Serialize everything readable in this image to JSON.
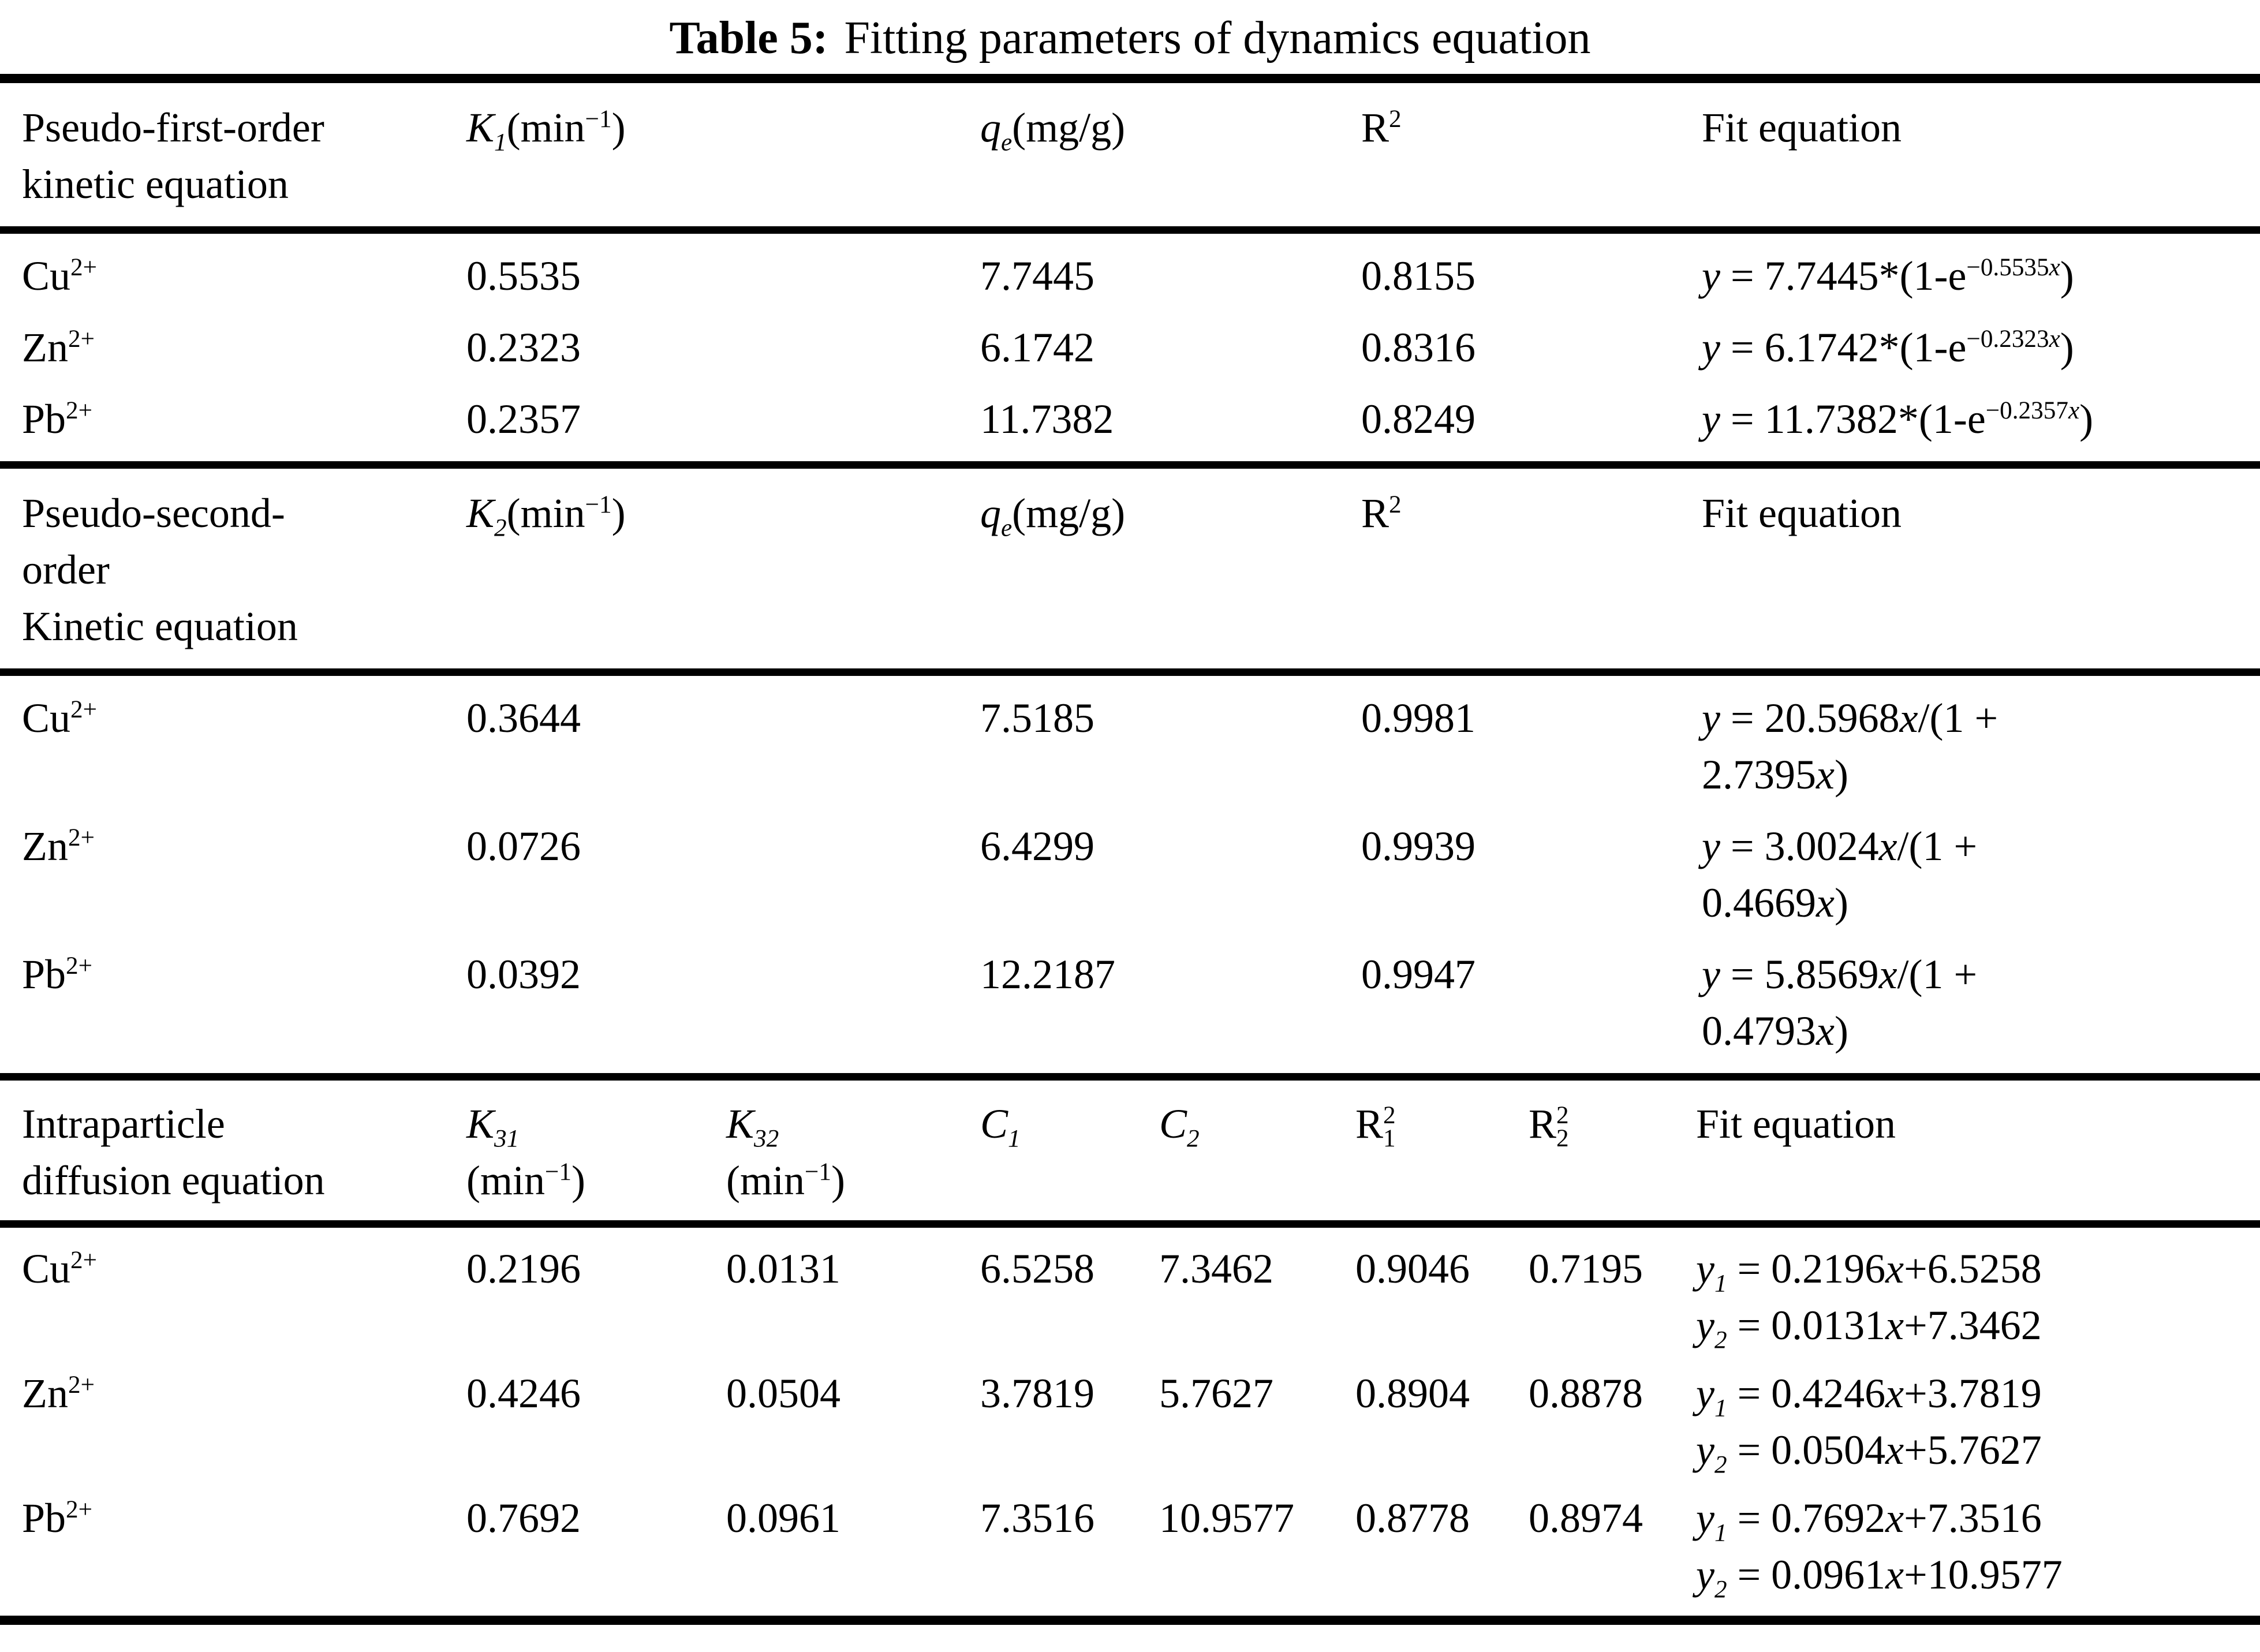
{
  "title": {
    "label": "Table 5:",
    "text": "Fitting parameters of dynamics equation"
  },
  "sections": [
    {
      "header": {
        "c0": "Pseudo-first-order<br>kinetic equation",
        "c1": "<i>K<sub>1</sub></i>(min<sup>−1</sup>)",
        "c2": "<i>q<sub>e</sub></i>(mg/g)",
        "c3": "R<sup>2</sup>",
        "c4": "Fit equation"
      },
      "rows": [
        {
          "ion": "Cu<sup>2+</sup>",
          "k": "0.5535",
          "qe": "7.7445",
          "r2": "0.8155",
          "fit1": "<i>y</i> = 7.7445*(1-e<sup>−0.5535<i>x</i></sup>)",
          "fit2": ""
        },
        {
          "ion": "Zn<sup>2+</sup>",
          "k": "0.2323",
          "qe": "6.1742",
          "r2": "0.8316",
          "fit1": "<i>y</i> = 6.1742*(1-e<sup>−0.2323<i>x</i></sup>)",
          "fit2": ""
        },
        {
          "ion": "Pb<sup>2+</sup>",
          "k": "0.2357",
          "qe": "11.7382",
          "r2": "0.8249",
          "fit1": "<i>y</i> = 11.7382*(1-e<sup>−0.2357<i>x</i></sup>)",
          "fit2": ""
        }
      ]
    },
    {
      "header": {
        "c0": "Pseudo-second-<br>order<br>Kinetic equation",
        "c1": "<i>K<sub>2</sub></i>(min<sup>−1</sup>)",
        "c2": "<i>q<sub>e</sub></i>(mg/g)",
        "c3": "R<sup>2</sup>",
        "c4": "Fit equation"
      },
      "rows": [
        {
          "ion": "Cu<sup>2+</sup>",
          "k": "0.3644",
          "qe": "7.5185",
          "r2": "0.9981",
          "fit1": "<i>y</i> = 20.5968<i>x</i>/(1 +",
          "fit2": "2.7395<i>x</i>)"
        },
        {
          "ion": "Zn<sup>2+</sup>",
          "k": "0.0726",
          "qe": "6.4299",
          "r2": "0.9939",
          "fit1": "<i>y</i> = 3.0024<i>x</i>/(1 +",
          "fit2": "0.4669<i>x</i>)"
        },
        {
          "ion": "Pb<sup>2+</sup>",
          "k": "0.0392",
          "qe": "12.2187",
          "r2": "0.9947",
          "fit1": "<i>y</i> = 5.8569<i>x</i>/(1 +",
          "fit2": "0.4793<i>x</i>)"
        }
      ]
    },
    {
      "header": {
        "c0": "Intraparticle<br>diffusion equation",
        "c1": "<i>K<sub>31</sub></i><br>(min<sup>−1</sup>)",
        "c2": "<i>K<sub>32</sub></i><br>(min<sup>−1</sup>)",
        "c3": "<i>C<sub>1</sub></i>",
        "c4": "<i>C<sub>2</sub></i>",
        "c5": "R<sup>2</sup><sub class='tuck'>1</sub>",
        "c6": "R<sup>2</sup><sub class='tuck'>2</sub>",
        "c7": "Fit equation"
      },
      "rows": [
        {
          "ion": "Cu<sup>2+</sup>",
          "k31": "0.2196",
          "k32": "0.0131",
          "c1": "6.5258",
          "c2": "7.3462",
          "r21": "0.9046",
          "r22": "0.7195",
          "fit1": "<i>y<sub>1</sub></i> = 0.2196<i>x</i>+6.5258",
          "fit2": "<i>y<sub>2</sub></i> = 0.0131<i>x</i>+7.3462"
        },
        {
          "ion": "Zn<sup>2+</sup>",
          "k31": "0.4246",
          "k32": "0.0504",
          "c1": "3.7819",
          "c2": "5.7627",
          "r21": "0.8904",
          "r22": "0.8878",
          "fit1": "<i>y<sub>1</sub></i> = 0.4246<i>x</i>+3.7819",
          "fit2": "<i>y<sub>2</sub></i> = 0.0504<i>x</i>+5.7627"
        },
        {
          "ion": "Pb<sup>2+</sup>",
          "k31": "0.7692",
          "k32": "0.0961",
          "c1": "7.3516",
          "c2": "10.9577",
          "r21": "0.8778",
          "r22": "0.8974",
          "fit1": "<i>y<sub>1</sub></i> = 0.7692<i>x</i>+7.3516",
          "fit2": "<i>y<sub>2</sub></i> = 0.0961<i>x</i>+10.9577"
        }
      ]
    }
  ]
}
